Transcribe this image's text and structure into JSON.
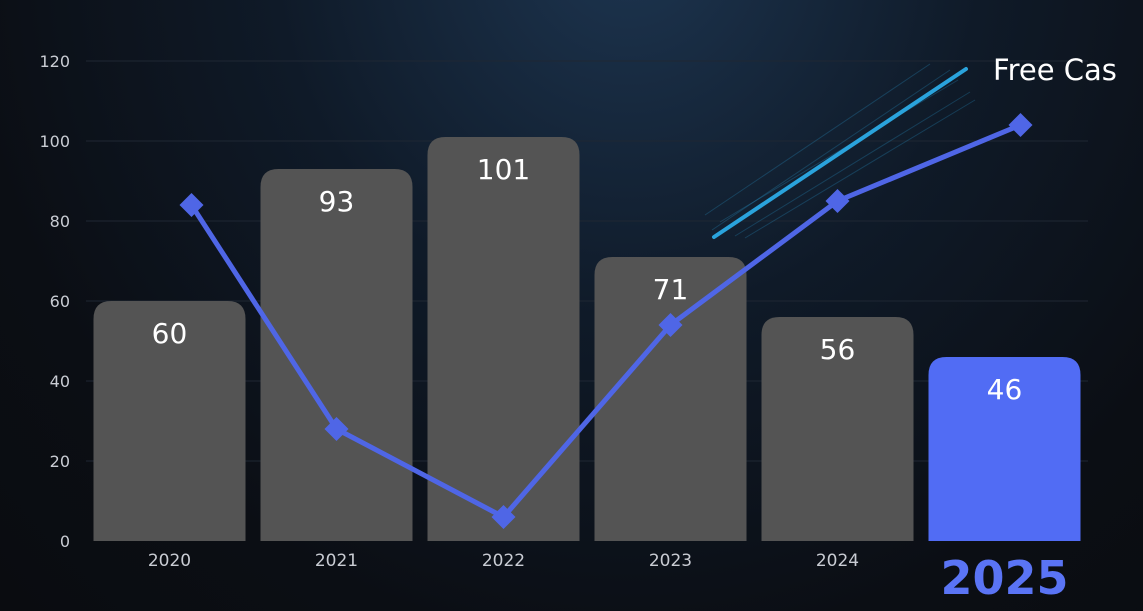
{
  "chart_data": {
    "type": "bar",
    "categories": [
      "2020",
      "2021",
      "2022",
      "2023",
      "2024",
      "2025"
    ],
    "series": [
      {
        "type": "bar",
        "values": [
          60,
          93,
          101,
          71,
          56,
          46
        ]
      },
      {
        "type": "line",
        "values": [
          84,
          28,
          6,
          54,
          85,
          104
        ]
      }
    ],
    "highlight_category": "2025",
    "annotation": "Free Cas",
    "ylim": [
      0,
      120
    ],
    "yticks": [
      0,
      20,
      40,
      60,
      80,
      100,
      120
    ],
    "grid": true,
    "colors": {
      "bar": "#545454",
      "bar_highlight": "#516cf4",
      "line": "#4f66e6",
      "trend": "#2aa3dc",
      "grid": "#1f2733",
      "highlight_tick": "#5a74f5"
    }
  }
}
